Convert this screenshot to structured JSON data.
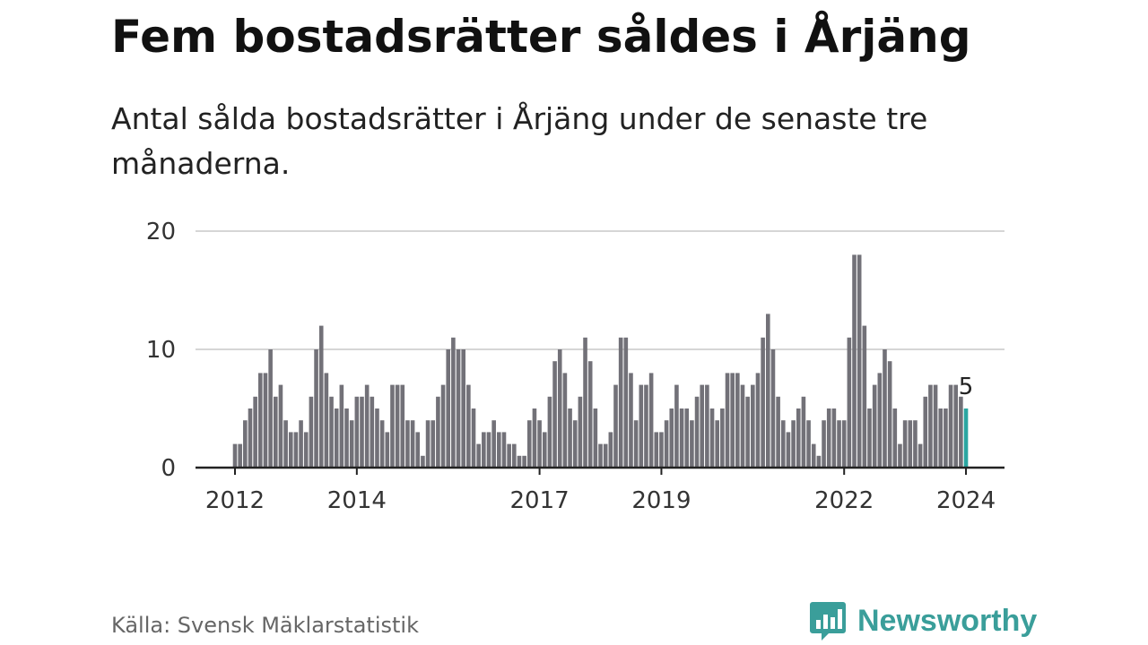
{
  "title": "Fem bostadsrätter såldes i Årjäng",
  "subtitle": "Antal sålda bostadsrätter i Årjäng under de senaste tre månaderna.",
  "source": "Källa: Svensk Mäklarstatistik",
  "brand": {
    "name": "Newsworthy",
    "icon": "newsworthy-logo-icon"
  },
  "colors": {
    "bar": "#727178",
    "highlight": "#2aa6a1",
    "grid": "#d6d6d6",
    "brand": "#3a9e9a",
    "axis": "#222222"
  },
  "chart_data": {
    "type": "bar",
    "title": "Fem bostadsrätter såldes i Årjäng",
    "xlabel": "",
    "ylabel": "",
    "ylim": [
      0,
      20
    ],
    "yticks": [
      "0",
      "10",
      "20"
    ],
    "x_start": "2012-01",
    "x_ticks": [
      {
        "label": "2012",
        "index": 0
      },
      {
        "label": "2014",
        "index": 24
      },
      {
        "label": "2017",
        "index": 60
      },
      {
        "label": "2019",
        "index": 84
      },
      {
        "label": "2022",
        "index": 120
      },
      {
        "label": "2024",
        "index": 144
      }
    ],
    "values": [
      2,
      2,
      4,
      5,
      6,
      8,
      8,
      10,
      6,
      7,
      4,
      3,
      3,
      4,
      3,
      6,
      10,
      12,
      8,
      6,
      5,
      7,
      5,
      4,
      6,
      6,
      7,
      6,
      5,
      4,
      3,
      7,
      7,
      7,
      4,
      4,
      3,
      1,
      4,
      4,
      6,
      7,
      10,
      11,
      10,
      10,
      7,
      5,
      2,
      3,
      3,
      4,
      3,
      3,
      2,
      2,
      1,
      1,
      4,
      5,
      4,
      3,
      6,
      9,
      10,
      8,
      5,
      4,
      6,
      11,
      9,
      5,
      2,
      2,
      3,
      7,
      11,
      11,
      8,
      4,
      7,
      7,
      8,
      3,
      3,
      4,
      5,
      7,
      5,
      5,
      4,
      6,
      7,
      7,
      5,
      4,
      5,
      8,
      8,
      8,
      7,
      6,
      7,
      8,
      11,
      13,
      10,
      6,
      4,
      3,
      4,
      5,
      6,
      4,
      2,
      1,
      4,
      5,
      5,
      4,
      4,
      11,
      18,
      18,
      12,
      5,
      7,
      8,
      10,
      9,
      5,
      2,
      4,
      4,
      4,
      2,
      6,
      7,
      7,
      5,
      5,
      7,
      7,
      6,
      5
    ],
    "highlight_last": true,
    "annotation": "5"
  }
}
